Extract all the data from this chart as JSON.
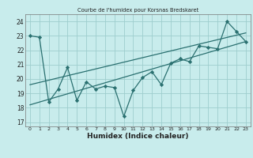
{
  "title": "Courbe de l'humidex pour Korsnas Bredskaret",
  "xlabel": "Humidex (Indice chaleur)",
  "bg_color": "#c8ecec",
  "grid_color": "#9ecece",
  "line_color": "#2a7070",
  "xlim": [
    -0.5,
    23.5
  ],
  "ylim": [
    16.7,
    24.5
  ],
  "yticks": [
    17,
    18,
    19,
    20,
    21,
    22,
    23,
    24
  ],
  "xticks": [
    0,
    1,
    2,
    3,
    4,
    5,
    6,
    7,
    8,
    9,
    10,
    11,
    12,
    13,
    14,
    15,
    16,
    17,
    18,
    19,
    20,
    21,
    22,
    23
  ],
  "line1_x": [
    0,
    1,
    2,
    3,
    4,
    5,
    6,
    7,
    8,
    9,
    10,
    11,
    12,
    13,
    14,
    15,
    16,
    17,
    18,
    19,
    20,
    21,
    22,
    23
  ],
  "line1_y": [
    23.0,
    22.9,
    18.4,
    19.3,
    20.8,
    18.5,
    19.8,
    19.3,
    19.5,
    19.4,
    17.4,
    19.2,
    20.1,
    20.5,
    19.6,
    21.1,
    21.4,
    21.2,
    22.3,
    22.2,
    22.1,
    24.0,
    23.3,
    22.6
  ],
  "trend1_x": [
    0,
    23
  ],
  "trend1_y": [
    18.2,
    22.6
  ],
  "trend2_x": [
    0,
    23
  ],
  "trend2_y": [
    19.6,
    23.2
  ]
}
